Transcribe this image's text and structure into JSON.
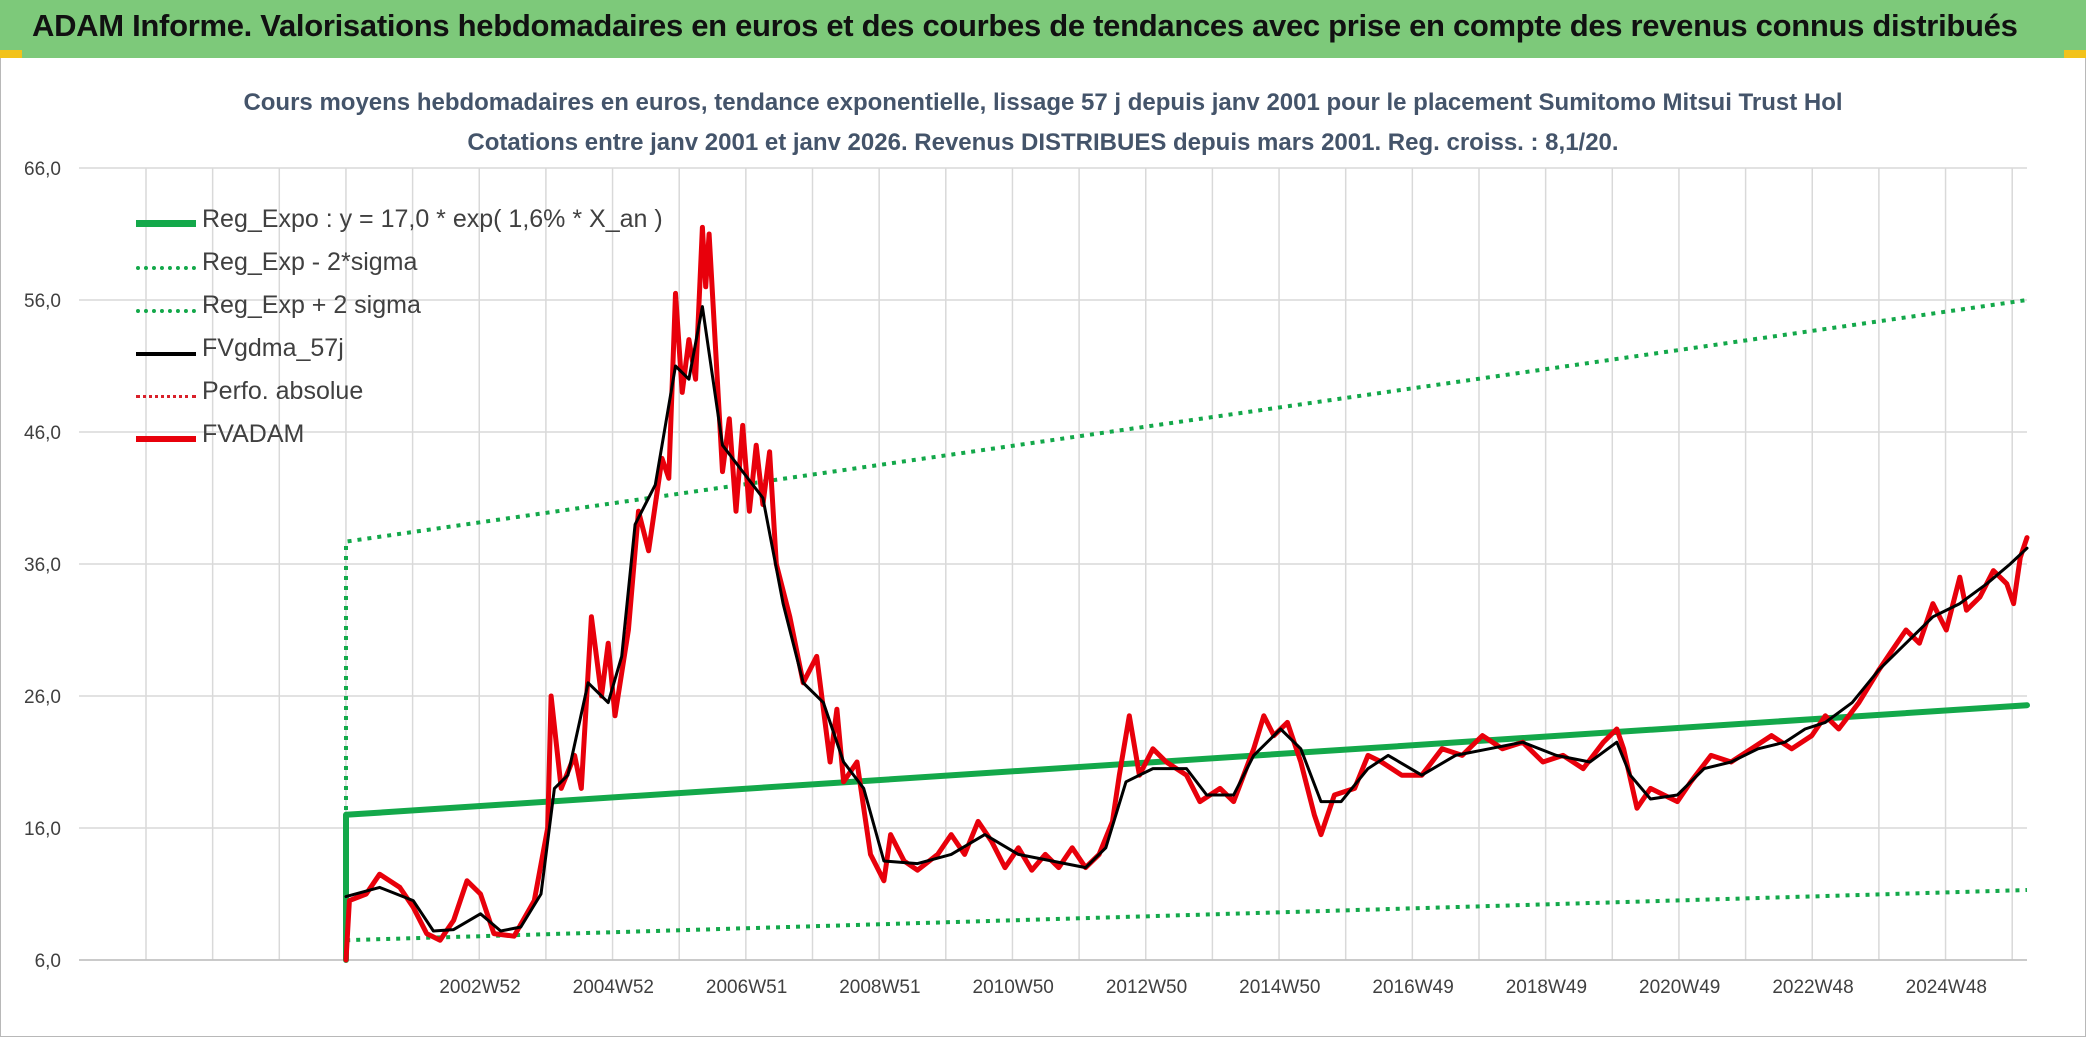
{
  "header": {
    "title": "ADAM Informe. Valorisations hebdomadaires en euros et des courbes de tendances avec prise en compte des revenus connus distribués"
  },
  "colors": {
    "banner": "#7dc97a",
    "reg_expo": "#13a84a",
    "sigma": "#13a84a",
    "fvgdma": "#000000",
    "perfo": "#d9202a",
    "fvadam": "#e8000b",
    "grid": "#d9d9d9"
  },
  "chart_data": {
    "type": "line",
    "title": "Cours moyens hebdomadaires en euros, tendance exponentielle, lissage 57 j depuis janv 2001 pour le placement Sumitomo Mitsui Trust Hol",
    "subtitle": "Cotations entre janv 2001 et janv 2026. Revenus DISTRIBUES depuis mars 2001. Reg. croiss. : 8,1/20.",
    "xlabel": "",
    "ylabel": "",
    "ylim": [
      6,
      66
    ],
    "yticks": [
      "6,0",
      "16,0",
      "26,0",
      "36,0",
      "46,0",
      "56,0",
      "66,0"
    ],
    "xticks": [
      "2002W52",
      "2004W52",
      "2006W51",
      "2008W51",
      "2010W50",
      "2012W50",
      "2014W50",
      "2016W49",
      "2018W49",
      "2020W49",
      "2022W48",
      "2024W48"
    ],
    "grid": true,
    "legend_position": "top-left",
    "series": [
      {
        "name": "Reg_Expo : y = 17,0 * exp( 1,6% *  X_an )",
        "style": "solid-thick",
        "color": "#13a84a",
        "points": [
          [
            2001.0,
            17.0
          ],
          [
            2026.0,
            25.3
          ]
        ]
      },
      {
        "name": "Reg_Exp - 2*sigma",
        "style": "dotted",
        "color": "#13a84a",
        "points": [
          [
            2001.0,
            7.5
          ],
          [
            2026.0,
            11.3
          ]
        ]
      },
      {
        "name": "Reg_Exp + 2 sigma",
        "style": "dotted",
        "color": "#13a84a",
        "points": [
          [
            2001.0,
            37.7
          ],
          [
            2026.0,
            56.0
          ]
        ]
      },
      {
        "name": "FVgdma_57j",
        "style": "solid",
        "color": "#000000",
        "points": [
          [
            2001.0,
            10.8
          ],
          [
            2001.5,
            11.5
          ],
          [
            2002.0,
            10.5
          ],
          [
            2002.3,
            8.2
          ],
          [
            2002.6,
            8.3
          ],
          [
            2003.0,
            9.5
          ],
          [
            2003.3,
            8.2
          ],
          [
            2003.6,
            8.5
          ],
          [
            2003.9,
            11.0
          ],
          [
            2004.1,
            19.0
          ],
          [
            2004.3,
            20.0
          ],
          [
            2004.6,
            27.0
          ],
          [
            2004.9,
            25.5
          ],
          [
            2005.1,
            29.0
          ],
          [
            2005.3,
            39.0
          ],
          [
            2005.6,
            42.0
          ],
          [
            2005.9,
            51.0
          ],
          [
            2006.1,
            50.0
          ],
          [
            2006.3,
            55.5
          ],
          [
            2006.6,
            45.0
          ],
          [
            2006.9,
            43.0
          ],
          [
            2007.2,
            41.0
          ],
          [
            2007.5,
            33.0
          ],
          [
            2007.8,
            27.0
          ],
          [
            2008.1,
            25.5
          ],
          [
            2008.4,
            21.0
          ],
          [
            2008.7,
            19.0
          ],
          [
            2009.0,
            13.5
          ],
          [
            2009.5,
            13.3
          ],
          [
            2010.0,
            14.0
          ],
          [
            2010.5,
            15.5
          ],
          [
            2011.0,
            14.0
          ],
          [
            2011.5,
            13.5
          ],
          [
            2012.0,
            13.0
          ],
          [
            2012.3,
            14.5
          ],
          [
            2012.6,
            19.5
          ],
          [
            2013.0,
            20.5
          ],
          [
            2013.5,
            20.5
          ],
          [
            2013.8,
            18.5
          ],
          [
            2014.2,
            18.5
          ],
          [
            2014.5,
            21.5
          ],
          [
            2014.9,
            23.5
          ],
          [
            2015.2,
            22.0
          ],
          [
            2015.5,
            18.0
          ],
          [
            2015.8,
            18.0
          ],
          [
            2016.2,
            20.5
          ],
          [
            2016.5,
            21.5
          ],
          [
            2017.0,
            20.0
          ],
          [
            2017.5,
            21.5
          ],
          [
            2018.0,
            22.0
          ],
          [
            2018.5,
            22.5
          ],
          [
            2019.0,
            21.5
          ],
          [
            2019.5,
            21.0
          ],
          [
            2019.9,
            22.5
          ],
          [
            2020.1,
            20.0
          ],
          [
            2020.4,
            18.2
          ],
          [
            2020.8,
            18.5
          ],
          [
            2021.2,
            20.5
          ],
          [
            2021.6,
            21.0
          ],
          [
            2022.0,
            22.0
          ],
          [
            2022.4,
            22.5
          ],
          [
            2022.7,
            23.5
          ],
          [
            2023.0,
            24.0
          ],
          [
            2023.4,
            25.5
          ],
          [
            2023.8,
            28.0
          ],
          [
            2024.2,
            30.0
          ],
          [
            2024.6,
            32.0
          ],
          [
            2025.0,
            33.0
          ],
          [
            2025.4,
            34.5
          ],
          [
            2025.75,
            36.0
          ],
          [
            2026.0,
            37.2
          ]
        ]
      },
      {
        "name": "Perfo. absolue",
        "style": "dotted",
        "color": "#d9202a",
        "points": []
      },
      {
        "name": "FVADAM",
        "style": "solid-thick",
        "color": "#e8000b",
        "points": [
          [
            2001.0,
            6.0
          ],
          [
            2001.05,
            10.5
          ],
          [
            2001.3,
            11.0
          ],
          [
            2001.5,
            12.5
          ],
          [
            2001.8,
            11.5
          ],
          [
            2002.0,
            10.0
          ],
          [
            2002.2,
            8.0
          ],
          [
            2002.4,
            7.5
          ],
          [
            2002.6,
            9.0
          ],
          [
            2002.8,
            12.0
          ],
          [
            2003.0,
            11.0
          ],
          [
            2003.2,
            8.0
          ],
          [
            2003.5,
            7.8
          ],
          [
            2003.8,
            10.5
          ],
          [
            2004.0,
            16.0
          ],
          [
            2004.05,
            26.0
          ],
          [
            2004.2,
            19.0
          ],
          [
            2004.4,
            21.5
          ],
          [
            2004.5,
            19.0
          ],
          [
            2004.65,
            32.0
          ],
          [
            2004.8,
            26.0
          ],
          [
            2004.9,
            30.0
          ],
          [
            2005.0,
            24.5
          ],
          [
            2005.2,
            31.0
          ],
          [
            2005.35,
            40.0
          ],
          [
            2005.5,
            37.0
          ],
          [
            2005.7,
            44.0
          ],
          [
            2005.8,
            42.5
          ],
          [
            2005.9,
            56.5
          ],
          [
            2006.0,
            49.0
          ],
          [
            2006.1,
            53.0
          ],
          [
            2006.2,
            50.0
          ],
          [
            2006.3,
            61.5
          ],
          [
            2006.35,
            57.0
          ],
          [
            2006.4,
            61.0
          ],
          [
            2006.5,
            52.0
          ],
          [
            2006.6,
            43.0
          ],
          [
            2006.7,
            47.0
          ],
          [
            2006.8,
            40.0
          ],
          [
            2006.9,
            46.5
          ],
          [
            2007.0,
            40.0
          ],
          [
            2007.1,
            45.0
          ],
          [
            2007.2,
            40.5
          ],
          [
            2007.3,
            44.5
          ],
          [
            2007.4,
            36.0
          ],
          [
            2007.6,
            32.0
          ],
          [
            2007.8,
            27.0
          ],
          [
            2008.0,
            29.0
          ],
          [
            2008.2,
            21.0
          ],
          [
            2008.3,
            25.0
          ],
          [
            2008.4,
            19.5
          ],
          [
            2008.6,
            21.0
          ],
          [
            2008.8,
            14.0
          ],
          [
            2009.0,
            12.0
          ],
          [
            2009.1,
            15.5
          ],
          [
            2009.3,
            13.5
          ],
          [
            2009.5,
            12.8
          ],
          [
            2009.8,
            14.0
          ],
          [
            2010.0,
            15.5
          ],
          [
            2010.2,
            14.0
          ],
          [
            2010.4,
            16.5
          ],
          [
            2010.6,
            15.0
          ],
          [
            2010.8,
            13.0
          ],
          [
            2011.0,
            14.5
          ],
          [
            2011.2,
            12.8
          ],
          [
            2011.4,
            14.0
          ],
          [
            2011.6,
            13.0
          ],
          [
            2011.8,
            14.5
          ],
          [
            2012.0,
            13.0
          ],
          [
            2012.2,
            14.0
          ],
          [
            2012.4,
            16.5
          ],
          [
            2012.5,
            20.0
          ],
          [
            2012.65,
            24.5
          ],
          [
            2012.8,
            20.0
          ],
          [
            2013.0,
            22.0
          ],
          [
            2013.2,
            21.0
          ],
          [
            2013.5,
            20.0
          ],
          [
            2013.7,
            18.0
          ],
          [
            2014.0,
            19.0
          ],
          [
            2014.2,
            18.0
          ],
          [
            2014.5,
            22.0
          ],
          [
            2014.65,
            24.5
          ],
          [
            2014.8,
            23.0
          ],
          [
            2015.0,
            24.0
          ],
          [
            2015.2,
            21.0
          ],
          [
            2015.4,
            17.0
          ],
          [
            2015.5,
            15.5
          ],
          [
            2015.7,
            18.5
          ],
          [
            2016.0,
            19.0
          ],
          [
            2016.2,
            21.5
          ],
          [
            2016.4,
            21.0
          ],
          [
            2016.7,
            20.0
          ],
          [
            2017.0,
            20.0
          ],
          [
            2017.3,
            22.0
          ],
          [
            2017.6,
            21.5
          ],
          [
            2017.9,
            23.0
          ],
          [
            2018.2,
            22.0
          ],
          [
            2018.5,
            22.5
          ],
          [
            2018.8,
            21.0
          ],
          [
            2019.1,
            21.5
          ],
          [
            2019.4,
            20.5
          ],
          [
            2019.7,
            22.5
          ],
          [
            2019.9,
            23.5
          ],
          [
            2020.0,
            22.0
          ],
          [
            2020.2,
            17.5
          ],
          [
            2020.4,
            19.0
          ],
          [
            2020.6,
            18.5
          ],
          [
            2020.8,
            18.0
          ],
          [
            2021.0,
            19.5
          ],
          [
            2021.3,
            21.5
          ],
          [
            2021.6,
            21.0
          ],
          [
            2021.9,
            22.0
          ],
          [
            2022.2,
            23.0
          ],
          [
            2022.5,
            22.0
          ],
          [
            2022.8,
            23.0
          ],
          [
            2023.0,
            24.5
          ],
          [
            2023.2,
            23.5
          ],
          [
            2023.5,
            25.5
          ],
          [
            2023.8,
            28.0
          ],
          [
            2024.0,
            29.5
          ],
          [
            2024.2,
            31.0
          ],
          [
            2024.4,
            30.0
          ],
          [
            2024.6,
            33.0
          ],
          [
            2024.8,
            31.0
          ],
          [
            2025.0,
            35.0
          ],
          [
            2025.1,
            32.5
          ],
          [
            2025.3,
            33.5
          ],
          [
            2025.5,
            35.5
          ],
          [
            2025.7,
            34.5
          ],
          [
            2025.8,
            33.0
          ],
          [
            2025.9,
            36.5
          ],
          [
            2026.0,
            38.0
          ]
        ]
      }
    ]
  }
}
